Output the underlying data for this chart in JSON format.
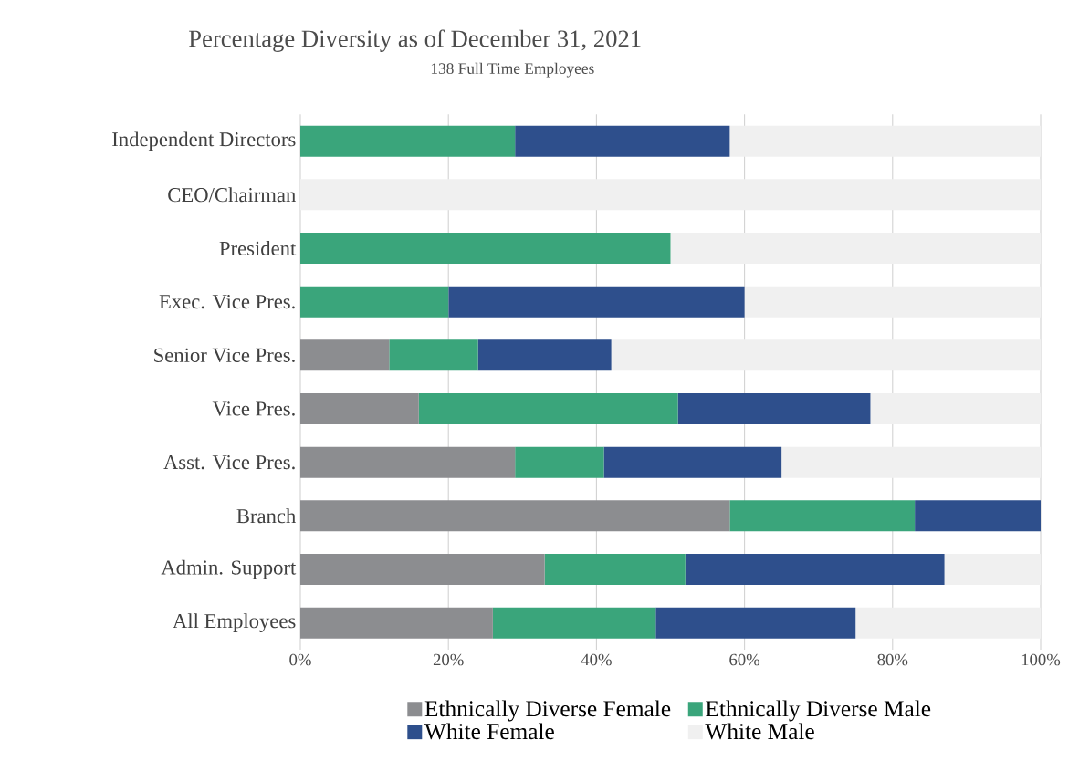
{
  "chart_data": {
    "type": "bar",
    "orientation": "horizontal",
    "stacked": true,
    "title": "Percentage Diversity as of December 31, 2021",
    "subtitle": "138 Full Time Employees",
    "categories": [
      "Independent Directors",
      "CEO/Chairman",
      "President",
      "Exec. Vice Pres.",
      "Senior Vice Pres.",
      "Vice Pres.",
      "Asst. Vice Pres.",
      "Branch",
      "Admin. Support",
      "All Employees"
    ],
    "series": [
      {
        "name": "Ethnically Diverse Female",
        "color": "#8c8d90",
        "values": [
          0,
          0,
          0,
          0,
          12,
          16,
          29,
          58,
          33,
          26
        ]
      },
      {
        "name": "Ethnically Diverse Male",
        "color": "#3aa57b",
        "values": [
          29,
          0,
          50,
          20,
          12,
          35,
          12,
          25,
          19,
          22
        ]
      },
      {
        "name": "White Female",
        "color": "#2e4f8c",
        "values": [
          29,
          0,
          0,
          40,
          18,
          26,
          24,
          17,
          35,
          27
        ]
      },
      {
        "name": "White Male",
        "color": "#f0f0f0",
        "values": [
          42,
          100,
          50,
          40,
          58,
          23,
          35,
          0,
          13,
          25
        ]
      }
    ],
    "xlim": [
      0,
      100
    ],
    "xticks": [
      {
        "value": 0,
        "label": "0%"
      },
      {
        "value": 20,
        "label": "20%"
      },
      {
        "value": 40,
        "label": "40%"
      },
      {
        "value": 60,
        "label": "60%"
      },
      {
        "value": 80,
        "label": "80%"
      },
      {
        "value": 100,
        "label": "100%"
      }
    ],
    "grid": "x",
    "legend": "bottom"
  }
}
